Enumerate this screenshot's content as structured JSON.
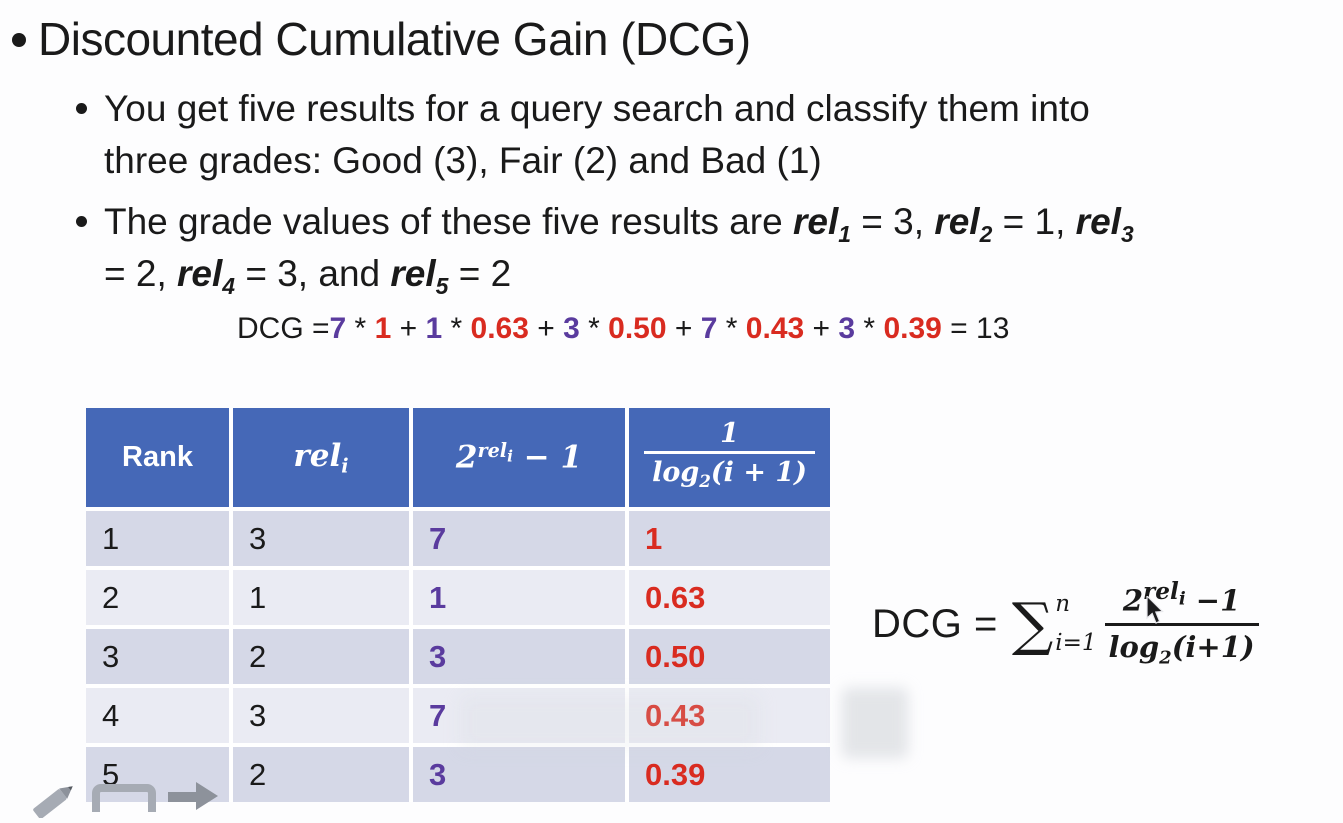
{
  "slide": {
    "title": "Discounted Cumulative Gain (DCG)",
    "bullet1_line1": "You get five results for a query search and classify them into",
    "bullet1_line2": "three grades: Good (3), Fair (2) and Bad (1)",
    "bullet2_line1_tokens": [
      {
        "s": "plain",
        "v": "The grade values of these five results are "
      },
      {
        "s": "rel",
        "v": "rel",
        "sub": "1"
      },
      {
        "s": "plain",
        "v": " = 3, "
      },
      {
        "s": "rel",
        "v": "rel",
        "sub": "2"
      },
      {
        "s": "plain",
        "v": " = 1, "
      },
      {
        "s": "rel",
        "v": "rel",
        "sub": "3"
      }
    ],
    "bullet2_line2_tokens": [
      {
        "s": "plain",
        "v": "= 2, "
      },
      {
        "s": "rel",
        "v": "rel",
        "sub": "4"
      },
      {
        "s": "plain",
        "v": " = 3, and "
      },
      {
        "s": "rel",
        "v": "rel",
        "sub": "5"
      },
      {
        "s": "plain",
        "v": " = 2"
      }
    ],
    "calc_tokens": [
      {
        "s": "plain",
        "v": "DCG ="
      },
      {
        "s": "purple",
        "v": "7"
      },
      {
        "s": "plain",
        "v": " * "
      },
      {
        "s": "red",
        "v": "1"
      },
      {
        "s": "plain",
        "v": " + "
      },
      {
        "s": "purple",
        "v": "1"
      },
      {
        "s": "plain",
        "v": " * "
      },
      {
        "s": "red",
        "v": "0.63"
      },
      {
        "s": "plain",
        "v": " + "
      },
      {
        "s": "purple",
        "v": "3"
      },
      {
        "s": "plain",
        "v": " * "
      },
      {
        "s": "red",
        "v": "0.50"
      },
      {
        "s": "plain",
        "v": " + "
      },
      {
        "s": "purple",
        "v": "7"
      },
      {
        "s": "plain",
        "v": " * "
      },
      {
        "s": "red",
        "v": "0.43"
      },
      {
        "s": "plain",
        "v": " + "
      },
      {
        "s": "purple",
        "v": "3"
      },
      {
        "s": "plain",
        "v": " * "
      },
      {
        "s": "red",
        "v": "0.39"
      },
      {
        "s": "plain",
        "v": " = 13"
      }
    ]
  },
  "table": {
    "header": {
      "col1": "Rank",
      "col2_rel": "rel",
      "col2_sub": "i",
      "col3_base": "2",
      "col3_exp": "rel",
      "col3_exp_sub": "i",
      "col3_tail": " − 1",
      "col4_num": "1",
      "col4_log": "log",
      "col4_log_sub": "2",
      "col4_tail": "(i + 1)"
    },
    "rows": [
      {
        "rank": "1",
        "rel": "3",
        "gain": "7",
        "discount": "1"
      },
      {
        "rank": "2",
        "rel": "1",
        "gain": "1",
        "discount": "0.63"
      },
      {
        "rank": "3",
        "rel": "2",
        "gain": "3",
        "discount": "0.50"
      },
      {
        "rank": "4",
        "rel": "3",
        "gain": "7",
        "discount": "0.43"
      },
      {
        "rank": "5",
        "rel": "2",
        "gain": "3",
        "discount": "0.39"
      }
    ]
  },
  "formula": {
    "lhs": "DCG =",
    "sigma": "∑",
    "sigma_sup": "n",
    "sigma_sub": "i=1",
    "num_base": "2",
    "num_exp": "rel",
    "num_exp_sub": "i",
    "num_tail": " −1",
    "den_log": "log",
    "den_sub": "2",
    "den_tail": "(i+1)"
  },
  "colors": {
    "header_blue": "#4568b7",
    "row_odd": "#d5d8e7",
    "row_even": "#eaebf3",
    "purple": "#5a3b9e",
    "red": "#d92b20"
  },
  "toolbar_icons": [
    {
      "name": "pencil-icon"
    },
    {
      "name": "rectangle-icon"
    },
    {
      "name": "arrow-icon"
    }
  ]
}
